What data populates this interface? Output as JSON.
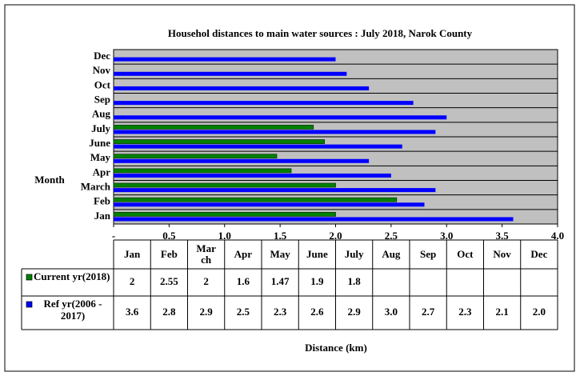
{
  "chart_data": {
    "type": "hbar",
    "title": "Househol distances to main water sources  : July  2018, Narok County",
    "y_label": "Month",
    "x_label": "Distance (km)",
    "categories": [
      "Jan",
      "Feb",
      "March",
      "Apr",
      "May",
      "June",
      "July",
      "Aug",
      "Sep",
      "Oct",
      "Nov",
      "Dec"
    ],
    "series": [
      {
        "name": "Current yr(2018)",
        "color": "#008000",
        "values": [
          2,
          2.55,
          2,
          1.6,
          1.47,
          1.9,
          1.8,
          null,
          null,
          null,
          null,
          null
        ]
      },
      {
        "name": "Ref yr(2006 - 2017)",
        "color": "#0000ff",
        "values": [
          3.6,
          2.8,
          2.9,
          2.5,
          2.3,
          2.6,
          2.9,
          3.0,
          2.7,
          2.3,
          2.1,
          2.0
        ],
        "value_labels": [
          "3.6",
          "2.8",
          "2.9",
          "2.5",
          "2.3",
          "2.6",
          "2.9",
          "3.0",
          "2.7",
          "2.3",
          "2.1",
          "2.0"
        ]
      }
    ],
    "xlim": [
      0,
      4
    ],
    "xticks": [
      {
        "value": 0,
        "label": "-"
      },
      0.5,
      {
        "value": 1,
        "label": "1.0"
      },
      1.5,
      {
        "value": 2,
        "label": "2.0"
      },
      2.5,
      {
        "value": 3,
        "label": "3.0"
      },
      3.5,
      {
        "value": 4,
        "label": "4.0"
      }
    ],
    "plot_background": "#c0c0c0",
    "data_table": true
  }
}
